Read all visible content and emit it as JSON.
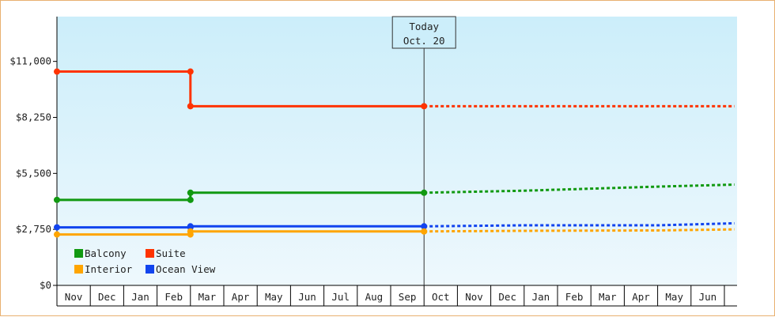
{
  "chart_data": {
    "type": "line",
    "title": "",
    "xlabel": "",
    "ylabel": "",
    "ylim": [
      0,
      13200
    ],
    "yticks": [
      0,
      2750,
      5500,
      8250,
      11000
    ],
    "ytick_labels": [
      "$0",
      "$2,750",
      "$5,500",
      "$8,250",
      "$11,000"
    ],
    "months": [
      "Nov",
      "Dec",
      "Jan",
      "Feb",
      "Mar",
      "Apr",
      "May",
      "Jun",
      "Jul",
      "Aug",
      "Sep",
      "Oct",
      "Nov",
      "Dec",
      "Jan",
      "Feb",
      "Mar",
      "Apr",
      "May",
      "Jun"
    ],
    "today": {
      "line1": "Today",
      "line2": "Oct. 20",
      "month_index": 11
    },
    "grid": false,
    "legend_position": "bottom-left",
    "series": [
      {
        "name": "Suite",
        "color": "#ff3300",
        "history": [
          [
            0,
            10500
          ],
          [
            4,
            10500
          ],
          [
            4,
            8800
          ],
          [
            11,
            8800
          ]
        ],
        "forecast": [
          [
            11,
            8800
          ],
          [
            20.3,
            8800
          ]
        ]
      },
      {
        "name": "Balcony",
        "color": "#119911",
        "history": [
          [
            0,
            4200
          ],
          [
            4,
            4200
          ],
          [
            4,
            4550
          ],
          [
            11,
            4550
          ]
        ],
        "forecast": [
          [
            11,
            4550
          ],
          [
            14,
            4650
          ],
          [
            16,
            4750
          ],
          [
            18,
            4850
          ],
          [
            20.3,
            4950
          ]
        ]
      },
      {
        "name": "Ocean View",
        "color": "#1144ee",
        "history": [
          [
            0,
            2850
          ],
          [
            4,
            2850
          ],
          [
            4,
            2900
          ],
          [
            11,
            2900
          ]
        ],
        "forecast": [
          [
            11,
            2900
          ],
          [
            14,
            2950
          ],
          [
            18,
            2950
          ],
          [
            20.3,
            3050
          ]
        ]
      },
      {
        "name": "Interior",
        "color": "#ffa500",
        "history": [
          [
            0,
            2500
          ],
          [
            4,
            2500
          ],
          [
            4,
            2650
          ],
          [
            11,
            2650
          ]
        ],
        "forecast": [
          [
            11,
            2650
          ],
          [
            14,
            2680
          ],
          [
            18,
            2700
          ],
          [
            20.3,
            2750
          ]
        ]
      }
    ],
    "legend": [
      {
        "name": "Balcony",
        "color": "#119911"
      },
      {
        "name": "Suite",
        "color": "#ff3300"
      },
      {
        "name": "Interior",
        "color": "#ffa500"
      },
      {
        "name": "Ocean View",
        "color": "#1144ee"
      }
    ]
  }
}
